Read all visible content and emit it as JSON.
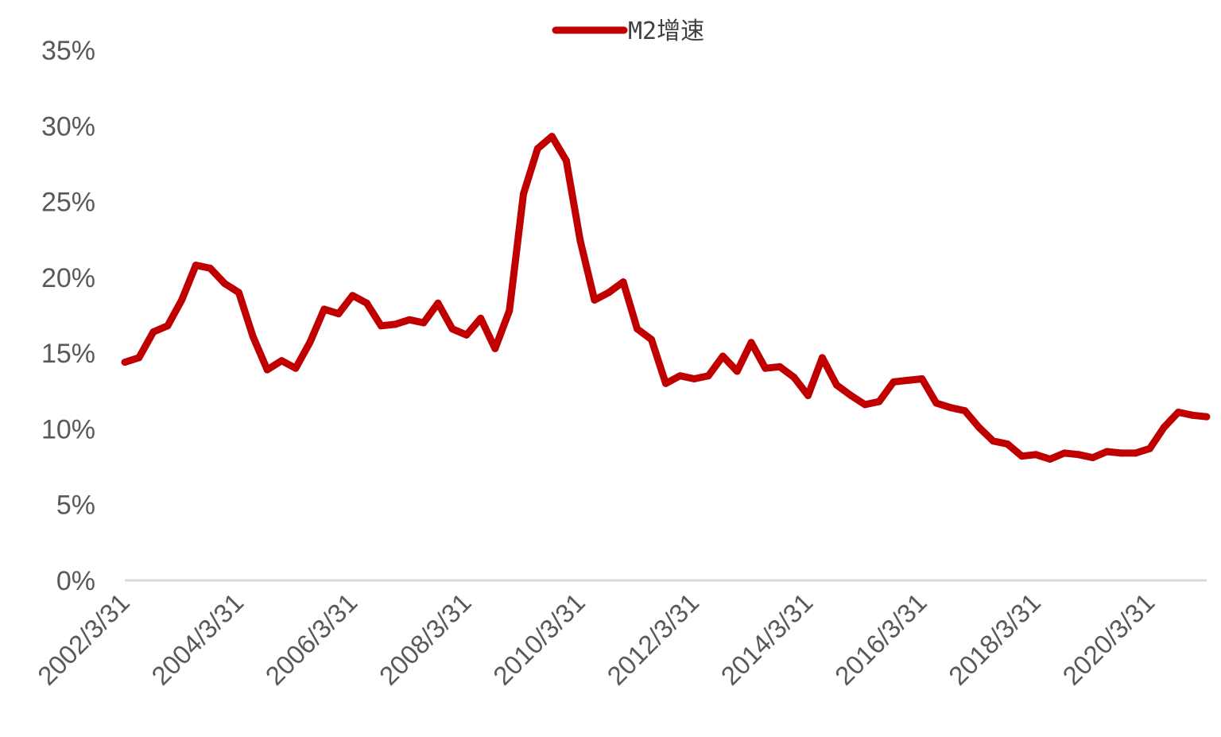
{
  "chart_data": {
    "type": "line",
    "title": "",
    "xlabel": "",
    "ylabel": "",
    "ylim": [
      0,
      0.35
    ],
    "y_ticks": [
      "0%",
      "5%",
      "10%",
      "15%",
      "20%",
      "25%",
      "30%",
      "35%"
    ],
    "x_tick_labels": [
      "2002/3/31",
      "2004/3/31",
      "2006/3/31",
      "2008/3/31",
      "2010/3/31",
      "2012/3/31",
      "2014/3/31",
      "2016/3/31",
      "2018/3/31",
      "2020/3/31"
    ],
    "x_range": [
      "2002-03-31",
      "2021-03-31"
    ],
    "grid": false,
    "legend_position": "top-center",
    "series": [
      {
        "name": "M2增速",
        "color": "#C00000",
        "x": [
          "2002-03-31",
          "2002-06-30",
          "2002-09-30",
          "2002-12-31",
          "2003-03-31",
          "2003-06-30",
          "2003-09-30",
          "2003-12-31",
          "2004-03-31",
          "2004-06-30",
          "2004-09-30",
          "2004-12-31",
          "2005-03-31",
          "2005-06-30",
          "2005-09-30",
          "2005-12-31",
          "2006-03-31",
          "2006-06-30",
          "2006-09-30",
          "2006-12-31",
          "2007-03-31",
          "2007-06-30",
          "2007-09-30",
          "2007-12-31",
          "2008-03-31",
          "2008-06-30",
          "2008-09-30",
          "2008-12-31",
          "2009-03-31",
          "2009-06-30",
          "2009-09-30",
          "2009-12-31",
          "2010-03-31",
          "2010-06-30",
          "2010-09-30",
          "2010-12-31",
          "2011-03-31",
          "2011-06-30",
          "2011-09-30",
          "2011-12-31",
          "2012-03-31",
          "2012-06-30",
          "2012-09-30",
          "2012-12-31",
          "2013-03-31",
          "2013-06-30",
          "2013-09-30",
          "2013-12-31",
          "2014-03-31",
          "2014-06-30",
          "2014-09-30",
          "2014-12-31",
          "2015-03-31",
          "2015-06-30",
          "2015-09-30",
          "2015-12-31",
          "2016-03-31",
          "2016-06-30",
          "2016-09-30",
          "2016-12-31",
          "2017-03-31",
          "2017-06-30",
          "2017-09-30",
          "2017-12-31",
          "2018-03-31",
          "2018-06-30",
          "2018-09-30",
          "2018-12-31",
          "2019-03-31",
          "2019-06-30",
          "2019-09-30",
          "2019-12-31",
          "2020-03-31",
          "2020-06-30",
          "2020-09-30",
          "2020-12-31",
          "2021-03-31"
        ],
        "values": [
          0.144,
          0.147,
          0.164,
          0.168,
          0.185,
          0.208,
          0.206,
          0.196,
          0.19,
          0.161,
          0.139,
          0.145,
          0.14,
          0.157,
          0.179,
          0.176,
          0.188,
          0.183,
          0.168,
          0.169,
          0.172,
          0.17,
          0.183,
          0.166,
          0.162,
          0.173,
          0.153,
          0.178,
          0.255,
          0.285,
          0.293,
          0.277,
          0.224,
          0.185,
          0.19,
          0.197,
          0.166,
          0.159,
          0.13,
          0.135,
          0.133,
          0.135,
          0.148,
          0.138,
          0.157,
          0.14,
          0.141,
          0.134,
          0.122,
          0.147,
          0.129,
          0.122,
          0.116,
          0.118,
          0.131,
          0.132,
          0.133,
          0.117,
          0.114,
          0.112,
          0.101,
          0.092,
          0.09,
          0.082,
          0.083,
          0.08,
          0.084,
          0.083,
          0.081,
          0.085,
          0.084,
          0.084,
          0.087,
          0.101,
          0.111,
          0.109,
          0.108
        ]
      }
    ]
  }
}
